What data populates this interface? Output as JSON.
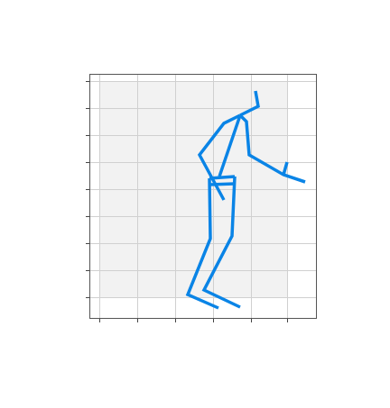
{
  "chart_data": {
    "type": "line",
    "color": "#0a84e6",
    "grid": true,
    "tick_labels": false,
    "xlim": [
      100,
      350
    ],
    "ylim": [
      100,
      370
    ],
    "xticks": [
      110,
      152,
      194,
      236,
      278,
      318
    ],
    "yticks": [
      123,
      153,
      183,
      213,
      243,
      273,
      303,
      333,
      363
    ],
    "segments": [
      {
        "x": [
          266,
          286,
          283
        ],
        "values": [
          325,
          335,
          352
        ]
      },
      {
        "x": [
          266,
          248,
          221,
          248
        ],
        "values": [
          325,
          316,
          281,
          231
        ]
      },
      {
        "x": [
          266,
          273,
          276,
          314,
          338
        ],
        "values": [
          325,
          318,
          281,
          259,
          251
        ]
      },
      {
        "x": [
          314,
          318
        ],
        "values": [
          259,
          273
        ]
      },
      {
        "x": [
          266,
          243
        ],
        "values": [
          325,
          257
        ]
      },
      {
        "x": [
          232,
          260
        ],
        "values": [
          255,
          257
        ]
      },
      {
        "x": [
          232,
          260
        ],
        "values": [
          248,
          249
        ]
      },
      {
        "x": [
          232,
          233,
          208,
          242
        ],
        "values": [
          255,
          188,
          126,
          111
        ]
      },
      {
        "x": [
          260,
          257,
          226,
          266
        ],
        "values": [
          257,
          191,
          131,
          112
        ]
      }
    ]
  }
}
